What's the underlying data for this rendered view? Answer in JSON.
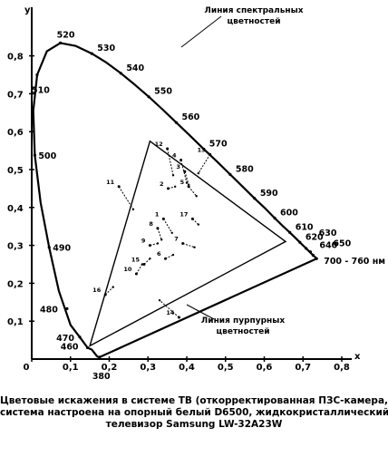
{
  "chart_data": {
    "type": "scatter",
    "xlabel": "x",
    "ylabel": "y",
    "xlim": [
      0,
      0.8
    ],
    "ylim": [
      0,
      0.9
    ],
    "x_ticks": [
      "0",
      "0,1",
      "0,2",
      "0,3",
      "0,4",
      "0,5",
      "0,6",
      "0,7",
      "0,8"
    ],
    "y_ticks": [
      "0,1",
      "0,2",
      "0,3",
      "0,4",
      "0,5",
      "0,6",
      "0,7",
      "0,8"
    ],
    "x_tick_values": [
      0,
      0.1,
      0.2,
      0.3,
      0.4,
      0.5,
      0.6,
      0.7,
      0.8
    ],
    "y_tick_values": [
      0.1,
      0.2,
      0.3,
      0.4,
      0.5,
      0.6,
      0.7,
      0.8
    ],
    "spectral_locus": [
      [
        0.175,
        0.005
      ],
      [
        0.173,
        0.005
      ],
      [
        0.169,
        0.007
      ],
      [
        0.165,
        0.012
      ],
      [
        0.155,
        0.025
      ],
      [
        0.144,
        0.03
      ],
      [
        0.124,
        0.058
      ],
      [
        0.1,
        0.09
      ],
      [
        0.07,
        0.18
      ],
      [
        0.045,
        0.295
      ],
      [
        0.023,
        0.413
      ],
      [
        0.008,
        0.538
      ],
      [
        0.004,
        0.655
      ],
      [
        0.014,
        0.75
      ],
      [
        0.039,
        0.812
      ],
      [
        0.074,
        0.834
      ],
      [
        0.114,
        0.826
      ],
      [
        0.155,
        0.806
      ],
      [
        0.193,
        0.782
      ],
      [
        0.23,
        0.754
      ],
      [
        0.266,
        0.724
      ],
      [
        0.302,
        0.692
      ],
      [
        0.337,
        0.659
      ],
      [
        0.373,
        0.624
      ],
      [
        0.409,
        0.589
      ],
      [
        0.444,
        0.554
      ],
      [
        0.479,
        0.52
      ],
      [
        0.512,
        0.487
      ],
      [
        0.545,
        0.454
      ],
      [
        0.575,
        0.424
      ],
      [
        0.603,
        0.397
      ],
      [
        0.627,
        0.372
      ],
      [
        0.648,
        0.351
      ],
      [
        0.666,
        0.334
      ],
      [
        0.68,
        0.32
      ],
      [
        0.692,
        0.308
      ],
      [
        0.702,
        0.298
      ],
      [
        0.735,
        0.265
      ]
    ],
    "wavelength_labels": [
      {
        "label": "380",
        "x": 0.175,
        "y": 0.005
      },
      {
        "label": "460",
        "x": 0.144,
        "y": 0.03
      },
      {
        "label": "470",
        "x": 0.124,
        "y": 0.058
      },
      {
        "label": "480",
        "x": 0.091,
        "y": 0.133
      },
      {
        "label": "490",
        "x": 0.045,
        "y": 0.295
      },
      {
        "label": "500",
        "x": 0.008,
        "y": 0.538
      },
      {
        "label": "510",
        "x": 0.014,
        "y": 0.75
      },
      {
        "label": "520",
        "x": 0.074,
        "y": 0.834
      },
      {
        "label": "530",
        "x": 0.155,
        "y": 0.806
      },
      {
        "label": "540",
        "x": 0.23,
        "y": 0.754
      },
      {
        "label": "550",
        "x": 0.302,
        "y": 0.692
      },
      {
        "label": "560",
        "x": 0.373,
        "y": 0.624
      },
      {
        "label": "570",
        "x": 0.444,
        "y": 0.554
      },
      {
        "label": "580",
        "x": 0.512,
        "y": 0.487
      },
      {
        "label": "590",
        "x": 0.575,
        "y": 0.424
      },
      {
        "label": "600",
        "x": 0.627,
        "y": 0.372
      },
      {
        "label": "610",
        "x": 0.666,
        "y": 0.334
      },
      {
        "label": "620",
        "x": 0.692,
        "y": 0.308
      },
      {
        "label": "630",
        "x": 0.708,
        "y": 0.292
      },
      {
        "label": "640",
        "x": 0.719,
        "y": 0.283
      },
      {
        "label": "650",
        "x": 0.726,
        "y": 0.274
      },
      {
        "label": "700 - 760 нм",
        "x": 0.735,
        "y": 0.265
      }
    ],
    "gamut_triangle": [
      [
        0.305,
        0.575
      ],
      [
        0.655,
        0.31
      ],
      [
        0.15,
        0.035
      ]
    ],
    "distortion_points": [
      {
        "label": "1",
        "from": [
          0.34,
          0.37
        ],
        "to": [
          0.362,
          0.333
        ]
      },
      {
        "label": "2",
        "from": [
          0.352,
          0.45
        ],
        "to": [
          0.37,
          0.455
        ]
      },
      {
        "label": "3",
        "from": [
          0.395,
          0.495
        ],
        "to": [
          0.405,
          0.46
        ]
      },
      {
        "label": "4",
        "from": [
          0.385,
          0.525
        ],
        "to": [
          0.4,
          0.465
        ]
      },
      {
        "label": "5",
        "from": [
          0.405,
          0.455
        ],
        "to": [
          0.425,
          0.43
        ]
      },
      {
        "label": "6",
        "from": [
          0.345,
          0.265
        ],
        "to": [
          0.365,
          0.275
        ]
      },
      {
        "label": "7",
        "from": [
          0.39,
          0.305
        ],
        "to": [
          0.42,
          0.295
        ]
      },
      {
        "label": "8",
        "from": [
          0.325,
          0.345
        ],
        "to": [
          0.335,
          0.315
        ]
      },
      {
        "label": "9",
        "from": [
          0.305,
          0.3
        ],
        "to": [
          0.325,
          0.305
        ]
      },
      {
        "label": "10",
        "from": [
          0.27,
          0.225
        ],
        "to": [
          0.285,
          0.25
        ]
      },
      {
        "label": "11",
        "from": [
          0.225,
          0.455
        ],
        "to": [
          0.262,
          0.395
        ]
      },
      {
        "label": "12",
        "from": [
          0.35,
          0.555
        ],
        "to": [
          0.365,
          0.485
        ]
      },
      {
        "label": "13",
        "from": [
          0.46,
          0.54
        ],
        "to": [
          0.43,
          0.49
        ]
      },
      {
        "label": "14",
        "from": [
          0.38,
          0.11
        ],
        "to": [
          0.33,
          0.155
        ]
      },
      {
        "label": "15",
        "from": [
          0.29,
          0.25
        ],
        "to": [
          0.305,
          0.265
        ]
      },
      {
        "label": "16",
        "from": [
          0.19,
          0.17
        ],
        "to": [
          0.21,
          0.19
        ]
      },
      {
        "label": "17",
        "from": [
          0.415,
          0.37
        ],
        "to": [
          0.43,
          0.355
        ]
      }
    ],
    "annotations": {
      "spectral_label": [
        "Линия спектральных",
        "цветностей"
      ],
      "purple_label": [
        "Линия пурпурных",
        "цветностей"
      ]
    }
  },
  "caption": [
    "Цветовые искажения в системе ТВ (откорректированная ПЗС-камера,",
    "система настроена на опорный белый D6500, жидкокристаллический",
    "телевизор Samsung LW-32A23W"
  ]
}
